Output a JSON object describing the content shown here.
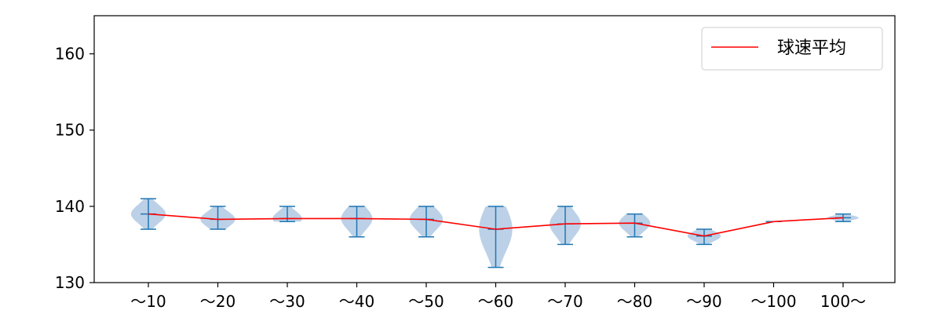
{
  "chart_data": {
    "type": "violin",
    "categories": [
      "～10",
      "～20",
      "～30",
      "～40",
      "～50",
      "～60",
      "～70",
      "～80",
      "～90",
      "～100",
      "100～"
    ],
    "ylim": [
      130,
      165
    ],
    "yticks": [
      130,
      140,
      150,
      160
    ],
    "grid": false,
    "legend": {
      "placement": "top-right",
      "entries": [
        "球速平均"
      ]
    },
    "series": [
      {
        "name": "球速平均",
        "type": "line",
        "color": "#ff0000",
        "values": [
          139.0,
          138.3,
          138.4,
          138.4,
          138.3,
          137.0,
          137.7,
          137.8,
          136.1,
          138.0,
          138.5
        ]
      }
    ],
    "distributions": [
      {
        "category": "～10",
        "min": 137,
        "max": 141,
        "mean": 139.0,
        "width": 0.5
      },
      {
        "category": "～20",
        "min": 137,
        "max": 140,
        "mean": 138.3,
        "width": 0.5
      },
      {
        "category": "～30",
        "min": 138,
        "max": 140,
        "mean": 138.4,
        "width": 0.42
      },
      {
        "category": "～40",
        "min": 136,
        "max": 140,
        "mean": 138.4,
        "width": 0.45
      },
      {
        "category": "～50",
        "min": 136,
        "max": 140,
        "mean": 138.3,
        "width": 0.48
      },
      {
        "category": "～60",
        "min": 132,
        "max": 140,
        "mean": 137.0,
        "width": 0.48
      },
      {
        "category": "～70",
        "min": 135,
        "max": 140,
        "mean": 137.7,
        "width": 0.45
      },
      {
        "category": "～80",
        "min": 136,
        "max": 139,
        "mean": 137.8,
        "width": 0.45
      },
      {
        "category": "～90",
        "min": 135,
        "max": 137,
        "mean": 136.1,
        "width": 0.48
      },
      {
        "category": "～100",
        "min": 138,
        "max": 138,
        "mean": 138.0,
        "width": 0.0
      },
      {
        "category": "100～",
        "min": 138,
        "max": 139,
        "mean": 138.5,
        "width": 0.45
      }
    ],
    "colors": {
      "violin_fill": "#b8cfe6",
      "whisker": "#1f77b4",
      "mean_line": "#ff0000",
      "axis": "#000000"
    }
  }
}
